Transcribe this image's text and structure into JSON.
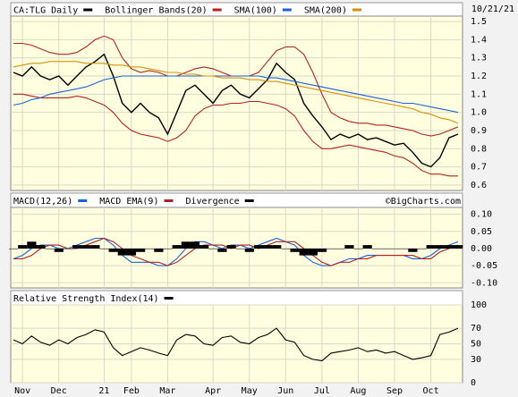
{
  "chart_data": [
    {
      "type": "line",
      "date": "10/21/21",
      "categories": [
        null,
        "Nov",
        null,
        null,
        null,
        "Dec",
        null,
        null,
        null,
        null,
        "21",
        null,
        null,
        "Feb",
        null,
        null,
        null,
        "Mar",
        null,
        null,
        null,
        null,
        "Apr",
        null,
        null,
        null,
        "May",
        null,
        null,
        null,
        "Jun",
        null,
        null,
        null,
        "Jul",
        null,
        null,
        null,
        "Aug",
        null,
        null,
        null,
        "Sep",
        null,
        null,
        null,
        "Oct",
        null,
        null,
        null
      ],
      "ylim": [
        0.57,
        1.53
      ],
      "yticks": [
        0.6,
        0.7,
        0.8,
        0.9,
        {
          "value": 1,
          "label": "1.0"
        },
        1.1,
        1.2,
        1.3,
        1.4,
        1.5
      ],
      "grid": true,
      "series": [
        {
          "name": "CA:TLG Daily",
          "color": "#000000",
          "values": [
            1.22,
            1.2,
            1.25,
            1.2,
            1.18,
            1.2,
            1.15,
            1.2,
            1.25,
            1.28,
            1.32,
            1.2,
            1.05,
            1.0,
            1.05,
            1.0,
            0.97,
            0.88,
            1.0,
            1.12,
            1.15,
            1.1,
            1.05,
            1.12,
            1.15,
            1.1,
            1.08,
            1.13,
            1.18,
            1.27,
            1.22,
            1.18,
            1.05,
            0.98,
            0.92,
            0.85,
            0.88,
            0.86,
            0.88,
            0.85,
            0.86,
            0.84,
            0.82,
            0.83,
            0.78,
            0.72,
            0.7,
            0.75,
            0.86,
            0.88
          ]
        },
        {
          "name": "Bollinger Bands(20)",
          "color": "#b22222",
          "values": [
            1.38,
            1.38,
            1.37,
            1.35,
            1.33,
            1.32,
            1.32,
            1.33,
            1.36,
            1.4,
            1.42,
            1.4,
            1.3,
            1.24,
            1.22,
            1.23,
            1.22,
            1.2,
            1.2,
            1.22,
            1.24,
            1.25,
            1.24,
            1.22,
            1.2,
            1.2,
            1.2,
            1.22,
            1.28,
            1.34,
            1.36,
            1.36,
            1.32,
            1.22,
            1.1,
            1.0,
            0.97,
            0.95,
            0.94,
            0.94,
            0.93,
            0.93,
            0.92,
            0.91,
            0.9,
            0.88,
            0.87,
            0.88,
            0.9,
            0.92
          ]
        },
        {
          "color": "#b22222",
          "values": [
            1.1,
            1.1,
            1.09,
            1.08,
            1.08,
            1.08,
            1.08,
            1.09,
            1.08,
            1.06,
            1.04,
            1.0,
            0.94,
            0.9,
            0.88,
            0.87,
            0.86,
            0.84,
            0.86,
            0.9,
            0.98,
            1.02,
            1.04,
            1.04,
            1.05,
            1.05,
            1.06,
            1.06,
            1.05,
            1.04,
            1.02,
            0.98,
            0.9,
            0.84,
            0.8,
            0.8,
            0.81,
            0.82,
            0.81,
            0.8,
            0.79,
            0.78,
            0.76,
            0.75,
            0.72,
            0.68,
            0.66,
            0.66,
            0.65,
            0.65
          ]
        },
        {
          "name": "SMA(100)",
          "color": "#1a62d6",
          "values": [
            1.04,
            1.05,
            1.07,
            1.08,
            1.1,
            1.11,
            1.12,
            1.13,
            1.14,
            1.16,
            1.18,
            1.19,
            1.2,
            1.2,
            1.2,
            1.2,
            1.2,
            1.2,
            1.2,
            1.2,
            1.2,
            1.2,
            1.2,
            1.2,
            1.2,
            1.2,
            1.2,
            1.2,
            1.19,
            1.19,
            1.18,
            1.17,
            1.16,
            1.15,
            1.14,
            1.13,
            1.12,
            1.11,
            1.1,
            1.09,
            1.08,
            1.07,
            1.06,
            1.05,
            1.05,
            1.04,
            1.03,
            1.02,
            1.01,
            1.0
          ]
        },
        {
          "name": "SMA(200)",
          "color": "#d4900a",
          "values": [
            1.25,
            1.26,
            1.27,
            1.27,
            1.28,
            1.28,
            1.28,
            1.28,
            1.27,
            1.27,
            1.27,
            1.26,
            1.26,
            1.25,
            1.25,
            1.24,
            1.23,
            1.22,
            1.22,
            1.21,
            1.21,
            1.2,
            1.2,
            1.19,
            1.19,
            1.19,
            1.18,
            1.18,
            1.17,
            1.17,
            1.16,
            1.15,
            1.14,
            1.13,
            1.12,
            1.11,
            1.1,
            1.09,
            1.08,
            1.07,
            1.06,
            1.05,
            1.04,
            1.03,
            1.02,
            1.0,
            0.99,
            0.97,
            0.96,
            0.94
          ]
        }
      ]
    },
    {
      "type": "line",
      "credit": "©BigCharts.com",
      "ylim": [
        -0.115,
        0.12
      ],
      "yticks": [
        {
          "value": 0.1,
          "label": "0.10"
        },
        {
          "value": 0.05,
          "label": "0.05"
        },
        {
          "value": 0,
          "label": "0.00"
        },
        {
          "value": -0.05,
          "label": "-0.05"
        },
        {
          "value": -0.1,
          "label": "-0.10"
        }
      ],
      "grid": true,
      "series": [
        {
          "name": "MACD(12,26)",
          "color": "#1a62d6",
          "values": [
            -0.03,
            -0.02,
            0.0,
            0.01,
            0.01,
            0.0,
            0.0,
            0.01,
            0.02,
            0.03,
            0.03,
            0.01,
            -0.02,
            -0.04,
            -0.04,
            -0.04,
            -0.05,
            -0.05,
            -0.03,
            0.0,
            0.02,
            0.02,
            0.01,
            0.0,
            0.01,
            0.01,
            0.0,
            0.01,
            0.02,
            0.03,
            0.02,
            0.01,
            -0.02,
            -0.04,
            -0.05,
            -0.05,
            -0.04,
            -0.03,
            -0.03,
            -0.02,
            -0.02,
            -0.02,
            -0.02,
            -0.02,
            -0.03,
            -0.03,
            -0.02,
            0.0,
            0.01,
            0.02
          ]
        },
        {
          "name": "MACD EMA(9)",
          "color": "#b22222",
          "values": [
            -0.03,
            -0.03,
            -0.02,
            0.0,
            0.01,
            0.01,
            0.0,
            0.0,
            0.01,
            0.02,
            0.03,
            0.02,
            0.0,
            -0.02,
            -0.03,
            -0.04,
            -0.04,
            -0.05,
            -0.04,
            -0.02,
            0.0,
            0.01,
            0.01,
            0.01,
            0.0,
            0.01,
            0.01,
            0.0,
            0.01,
            0.02,
            0.02,
            0.02,
            0.0,
            -0.02,
            -0.04,
            -0.05,
            -0.04,
            -0.04,
            -0.03,
            -0.03,
            -0.02,
            -0.02,
            -0.02,
            -0.02,
            -0.02,
            -0.03,
            -0.03,
            -0.01,
            0.0,
            0.01
          ]
        },
        {
          "name": "Divergence",
          "color": "#000000",
          "style": "bar",
          "values": [
            0,
            0.01,
            0.02,
            0.01,
            0,
            -0.01,
            0,
            0.01,
            0.01,
            0.01,
            0,
            -0.01,
            -0.02,
            -0.02,
            -0.01,
            0,
            -0.01,
            0,
            0.01,
            0.02,
            0.02,
            0.01,
            0,
            -0.01,
            0.01,
            0,
            -0.01,
            0.01,
            0.01,
            0.01,
            0,
            -0.01,
            -0.02,
            -0.02,
            -0.01,
            0,
            0,
            0.01,
            0,
            0.01,
            0,
            0,
            0,
            0,
            -0.01,
            0,
            0.01,
            0.01,
            0.01,
            0.01
          ]
        }
      ]
    },
    {
      "type": "line",
      "ylim": [
        0,
        100
      ],
      "yticks": [
        100,
        70,
        50,
        30,
        0
      ],
      "grid": true,
      "series": [
        {
          "name": "Relative Strength Index(14)",
          "color": "#000000",
          "values": [
            55,
            50,
            60,
            52,
            48,
            55,
            50,
            58,
            62,
            68,
            65,
            45,
            35,
            40,
            45,
            42,
            38,
            35,
            55,
            62,
            60,
            50,
            48,
            58,
            60,
            52,
            50,
            58,
            62,
            70,
            55,
            52,
            35,
            30,
            28,
            38,
            40,
            42,
            45,
            40,
            42,
            38,
            40,
            35,
            30,
            32,
            35,
            62,
            65,
            70
          ]
        }
      ]
    }
  ]
}
